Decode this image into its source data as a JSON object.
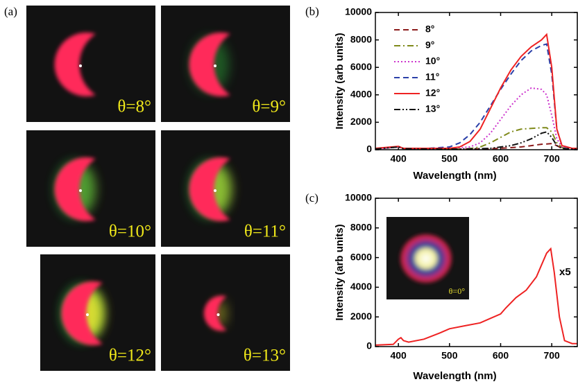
{
  "figure": {
    "label": "(a)",
    "images": [
      {
        "label": "θ=8°"
      },
      {
        "label": "θ=9°"
      },
      {
        "label": "θ=10°"
      },
      {
        "label": "θ=11°"
      },
      {
        "label": "θ=12°"
      },
      {
        "label": "θ=13°"
      }
    ]
  },
  "chart_data": [
    {
      "type": "line",
      "label": "(b)",
      "x_label": "Wavelength (nm)",
      "y_label": "Intensity (arb units)",
      "xlim": [
        355,
        750
      ],
      "xticks": [
        400,
        500,
        600,
        700
      ],
      "ylim": [
        0,
        10000
      ],
      "yticks": [
        0,
        2000,
        4000,
        6000,
        8000,
        10000
      ],
      "legend": "upper left",
      "x": [
        355,
        400,
        410,
        450,
        500,
        520,
        540,
        560,
        580,
        600,
        620,
        640,
        660,
        680,
        690,
        700,
        710,
        720,
        740,
        750
      ],
      "series": [
        {
          "name": "8°",
          "color": "#8b1a1a",
          "style": "dashed",
          "values": [
            50,
            200,
            80,
            50,
            50,
            50,
            50,
            60,
            80,
            100,
            150,
            200,
            300,
            400,
            420,
            450,
            300,
            100,
            50,
            50
          ]
        },
        {
          "name": "9°",
          "color": "#7f8a1a",
          "style": "dashdot",
          "values": [
            50,
            200,
            80,
            50,
            50,
            50,
            80,
            200,
            500,
            900,
            1300,
            1500,
            1550,
            1600,
            1600,
            1300,
            500,
            150,
            50,
            50
          ]
        },
        {
          "name": "10°",
          "color": "#cc33cc",
          "style": "dotted",
          "values": [
            50,
            200,
            80,
            50,
            100,
            150,
            200,
            500,
            1200,
            2200,
            3200,
            4000,
            4500,
            4400,
            4000,
            2500,
            800,
            200,
            50,
            50
          ]
        },
        {
          "name": "11°",
          "color": "#2b3fa8",
          "style": "dashed",
          "values": [
            60,
            220,
            90,
            80,
            200,
            500,
            1100,
            2000,
            3200,
            4400,
            5500,
            6500,
            7200,
            7600,
            7700,
            5500,
            1500,
            300,
            80,
            60
          ]
        },
        {
          "name": "12°",
          "color": "#ee2222",
          "style": "solid",
          "values": [
            100,
            250,
            100,
            100,
            100,
            200,
            600,
            1500,
            3000,
            4500,
            5800,
            6800,
            7500,
            8000,
            8400,
            6000,
            1500,
            300,
            100,
            100
          ]
        },
        {
          "name": "13°",
          "color": "#111111",
          "style": "dashdotdot",
          "values": [
            50,
            200,
            80,
            50,
            50,
            50,
            60,
            80,
            100,
            200,
            300,
            500,
            800,
            1200,
            1300,
            900,
            300,
            100,
            50,
            50
          ]
        }
      ]
    },
    {
      "type": "line",
      "label": "(c)",
      "x_label": "Wavelength (nm)",
      "y_label": "Intensity (arb units)",
      "xlim": [
        355,
        750
      ],
      "xticks": [
        400,
        500,
        600,
        700
      ],
      "ylim": [
        0,
        10000
      ],
      "yticks": [
        0,
        2000,
        4000,
        6000,
        8000,
        10000
      ],
      "annotation": "x5",
      "inset_label": "θ=0°",
      "x": [
        355,
        390,
        400,
        405,
        410,
        420,
        450,
        480,
        500,
        530,
        560,
        580,
        600,
        610,
        630,
        650,
        670,
        680,
        690,
        698,
        705,
        715,
        725,
        740,
        750
      ],
      "series": [
        {
          "name": null,
          "color": "#ee2222",
          "style": "solid",
          "values": [
            100,
            150,
            500,
            600,
            400,
            300,
            500,
            900,
            1200,
            1400,
            1600,
            1900,
            2200,
            2600,
            3300,
            3800,
            4700,
            5500,
            6300,
            6600,
            5000,
            2000,
            400,
            200,
            200
          ]
        }
      ]
    }
  ]
}
